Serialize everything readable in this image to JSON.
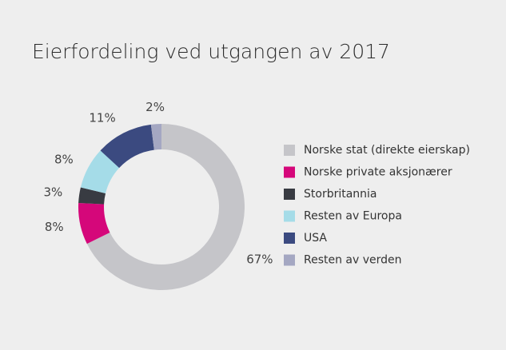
{
  "chart_data": {
    "type": "donut",
    "title": "Eierfordeling ved utgangen av 2017",
    "categories": [
      "Norske stat (direkte eierskap)",
      "Norske private aksjonærer",
      "Storbritannia",
      "Resten av Europa",
      "USA",
      "Resten av verden"
    ],
    "values": [
      67,
      8,
      3,
      8,
      11,
      2
    ],
    "value_labels": [
      "67%",
      "8%",
      "3%",
      "8%",
      "11%",
      "2%"
    ],
    "colors": [
      "#c5c5c9",
      "#d5077a",
      "#383b42",
      "#a5dce8",
      "#3b4a80",
      "#a4a7c2"
    ],
    "legend": "right"
  }
}
